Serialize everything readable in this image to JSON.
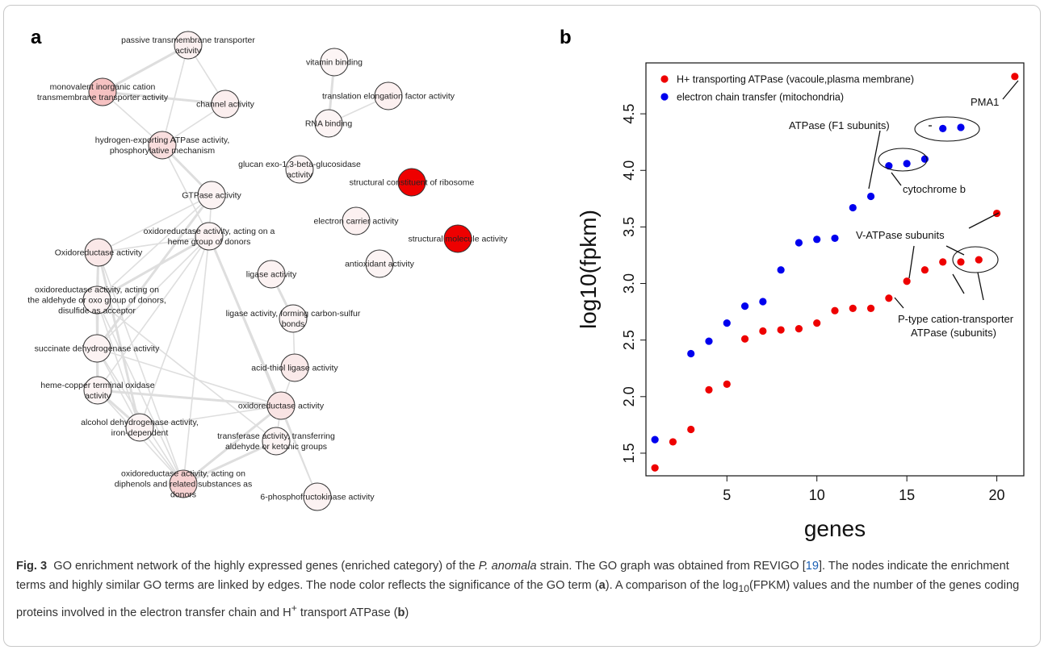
{
  "panel_a": {
    "label": "a",
    "nodes": [
      {
        "id": 0,
        "label": [
          "passive transmembrane transporter",
          "activity"
        ],
        "color": "#fbf0f0"
      },
      {
        "id": 1,
        "label": [
          "monovalent inorganic cation",
          "transmembrane transporter activity"
        ],
        "color": "#f6c2c2"
      },
      {
        "id": 2,
        "label": [
          "channel activity"
        ],
        "color": "#fbeeee"
      },
      {
        "id": 3,
        "label": [
          "hydrogen-exporting ATPase activity,",
          "phosphorylative mechanism"
        ],
        "color": "#f9dede"
      },
      {
        "id": 4,
        "label": [
          "vitamin binding"
        ],
        "color": "#fcf5f5"
      },
      {
        "id": 5,
        "label": [
          "translation elongation factor activity"
        ],
        "color": "#fcf0f0"
      },
      {
        "id": 6,
        "label": [
          "RNA binding"
        ],
        "color": "#fcf4f4"
      },
      {
        "id": 7,
        "label": [
          "glucan exo-1,3-beta-glucosidase",
          "activity"
        ],
        "color": "#fcf5f5"
      },
      {
        "id": 8,
        "label": [
          "structural constituent of ribosome"
        ],
        "color": "#ee0000"
      },
      {
        "id": 9,
        "label": [
          "GTPase activity"
        ],
        "color": "#fcf3f3"
      },
      {
        "id": 10,
        "label": [
          "electron carrier activity"
        ],
        "color": "#fcf1f1"
      },
      {
        "id": 11,
        "label": [
          "structural molecule activity"
        ],
        "color": "#ee0000"
      },
      {
        "id": 12,
        "label": [
          "oxidoreductase activity, acting on a",
          "heme group of donors"
        ],
        "color": "#fcf3f3"
      },
      {
        "id": 13,
        "label": [
          "Oxidoreductase activity"
        ],
        "color": "#fae8e8"
      },
      {
        "id": 14,
        "label": [
          "antioxidant activity"
        ],
        "color": "#fcf4f4"
      },
      {
        "id": 15,
        "label": [
          "ligase activity"
        ],
        "color": "#fcf2f2"
      },
      {
        "id": 16,
        "label": [
          "oxidoreductase activity, acting on",
          "the aldehyde or oxo group of donors,",
          "disulfide as acceptor"
        ],
        "color": "#fcf4f4"
      },
      {
        "id": 17,
        "label": [
          "ligase activity, forming carbon-sulfur",
          "bonds"
        ],
        "color": "#fcf4f4"
      },
      {
        "id": 18,
        "label": [
          "succinate dehydrogenase activity"
        ],
        "color": "#fcf3f3"
      },
      {
        "id": 19,
        "label": [
          "acid-thiol ligase activity"
        ],
        "color": "#faeaea"
      },
      {
        "id": 20,
        "label": [
          "heme-copper terminal oxidase",
          "activity"
        ],
        "color": "#fcf4f4"
      },
      {
        "id": 21,
        "label": [
          "oxidoreductase activity"
        ],
        "color": "#f9e4e4"
      },
      {
        "id": 22,
        "label": [
          "alcohol dehydrogenase activity,",
          "iron-dependent"
        ],
        "color": "#fcf4f4"
      },
      {
        "id": 23,
        "label": [
          "transferase activity, transferring",
          "aldehyde or ketonic groups"
        ],
        "color": "#fcf4f4"
      },
      {
        "id": 24,
        "label": [
          "oxidoreductase activity, acting on",
          "diphenols and related substances as",
          "donors"
        ],
        "color": "#f7d2d2"
      },
      {
        "id": 25,
        "label": [
          "6-phosphofructokinase activity"
        ],
        "color": "#fcf2f2"
      }
    ],
    "edges": [
      [
        0,
        1
      ],
      [
        0,
        2
      ],
      [
        0,
        3
      ],
      [
        1,
        2
      ],
      [
        1,
        3
      ],
      [
        2,
        3
      ],
      [
        3,
        9
      ],
      [
        3,
        12
      ],
      [
        5,
        6
      ],
      [
        4,
        6
      ],
      [
        9,
        12
      ],
      [
        9,
        13
      ],
      [
        9,
        18
      ],
      [
        9,
        16
      ],
      [
        12,
        13
      ],
      [
        12,
        16
      ],
      [
        12,
        18
      ],
      [
        12,
        20
      ],
      [
        12,
        21
      ],
      [
        12,
        22
      ],
      [
        12,
        24
      ],
      [
        13,
        16
      ],
      [
        13,
        18
      ],
      [
        13,
        20
      ],
      [
        13,
        22
      ],
      [
        13,
        24
      ],
      [
        16,
        18
      ],
      [
        16,
        20
      ],
      [
        16,
        22
      ],
      [
        16,
        24
      ],
      [
        18,
        20
      ],
      [
        18,
        22
      ],
      [
        18,
        24
      ],
      [
        20,
        22
      ],
      [
        20,
        24
      ],
      [
        22,
        24
      ],
      [
        15,
        17
      ],
      [
        17,
        19
      ],
      [
        19,
        21
      ],
      [
        21,
        24
      ],
      [
        21,
        23
      ],
      [
        21,
        25
      ],
      [
        21,
        20
      ],
      [
        21,
        18
      ],
      [
        21,
        22
      ],
      [
        23,
        24
      ],
      [
        23,
        16
      ],
      [
        12,
        25
      ]
    ]
  },
  "panel_b": {
    "label": "b",
    "legend": [
      {
        "text": "H+ transporting ATPase (vacoule,plasma membrane)",
        "color": "#ee0000"
      },
      {
        "text": "electron chain transfer (mitochondria)",
        "color": "#0000ee"
      }
    ],
    "annotations": {
      "pma1": "PMA1",
      "f1": "ATPase (F1 subunits)",
      "cytb": "cytochrome b",
      "vatpase": "V-ATPase  subunits",
      "ptype1": "P-type cation-transporter",
      "ptype2": "ATPase (subunits)"
    }
  },
  "chart_data": {
    "type": "scatter",
    "xlabel": "genes",
    "ylabel": "log10(fpkm)",
    "xlim": [
      0.5,
      21.5
    ],
    "ylim": [
      1.3,
      4.95
    ],
    "xticks": [
      5,
      10,
      15,
      20
    ],
    "yticks": [
      1.5,
      2.0,
      2.5,
      3.0,
      3.5,
      4.0,
      4.5
    ],
    "series": [
      {
        "name": "H+ transporting ATPase (vacoule,plasma membrane)",
        "color": "#ee0000",
        "x": [
          1,
          2,
          3,
          4,
          5,
          6,
          7,
          8,
          9,
          10,
          11,
          12,
          13,
          14,
          15,
          16,
          17,
          18,
          19,
          20,
          21
        ],
        "y": [
          1.37,
          1.6,
          1.71,
          2.06,
          2.11,
          2.51,
          2.58,
          2.59,
          2.6,
          2.65,
          2.76,
          2.78,
          2.78,
          2.87,
          3.02,
          3.12,
          3.19,
          3.19,
          3.21,
          3.62,
          4.83
        ]
      },
      {
        "name": "electron chain transfer (mitochondria)",
        "color": "#0000ee",
        "x": [
          1,
          3,
          4,
          5,
          6,
          7,
          8,
          9,
          10,
          11,
          12,
          13,
          14,
          15,
          16,
          17,
          18
        ],
        "y": [
          1.62,
          2.38,
          2.49,
          2.65,
          2.8,
          2.84,
          3.12,
          3.36,
          3.39,
          3.4,
          3.67,
          3.77,
          4.04,
          4.06,
          4.1,
          4.37,
          4.38
        ]
      }
    ]
  },
  "caption": {
    "fig": "Fig. 3",
    "p1": "GO enrichment network of the highly expressed genes (enriched category) of the",
    "species": "P. anomala",
    "p2": "strain. The GO graph was obtained from REVIGO [",
    "ref": "19",
    "p3": "]. The nodes indicate the enrichment terms and highly similar GO terms are linked by edges. The node color reflects the significance of the GO term (",
    "a": "a",
    "p4": "). A comparison of the log",
    "sub": "10",
    "p5": "(FPKM) values and the number of the genes coding proteins involved in the electron transfer chain and H",
    "sup": "+",
    "p6": "transport ATPase (",
    "b": "b",
    "p7": ")"
  }
}
